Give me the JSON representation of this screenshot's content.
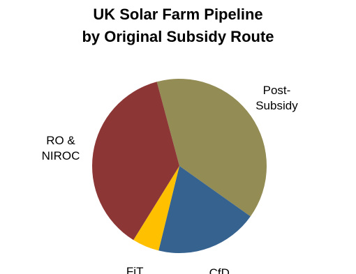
{
  "chart_data": {
    "type": "pie",
    "title": [
      "UK Solar Farm Pipeline",
      "by Original Subsidy Route"
    ],
    "categories": [
      "Post-Subsidy",
      "CfD",
      "FiT",
      "RO & NIROC"
    ],
    "values": [
      39,
      19,
      5,
      37
    ],
    "colors": [
      "#938c55",
      "#35628f",
      "#ffc000",
      "#8c3635"
    ]
  }
}
